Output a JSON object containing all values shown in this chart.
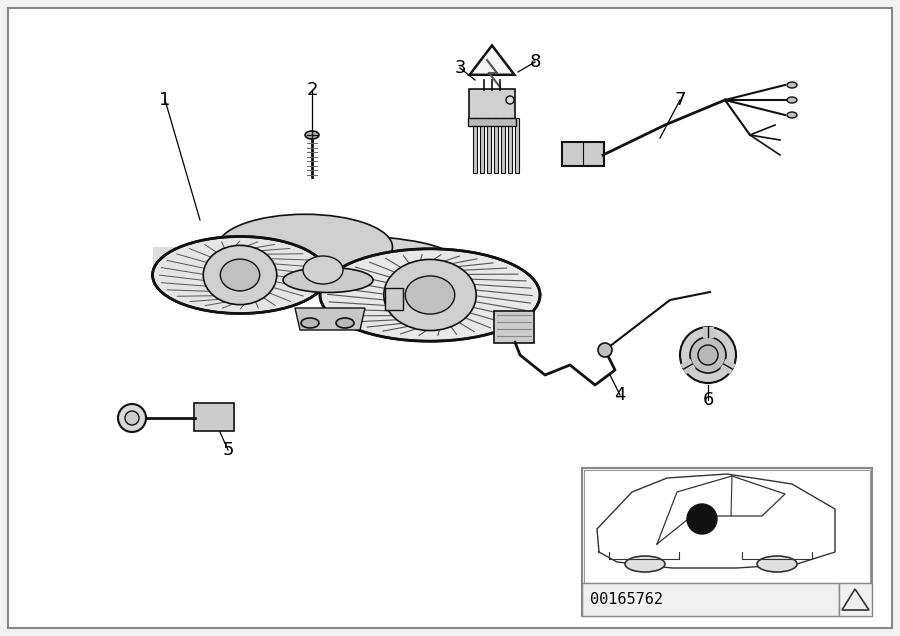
{
  "background_color": "#f2f2f2",
  "diagram_bg": "#ffffff",
  "border_color": "#000000",
  "diagram_id": "00165762",
  "label_color": "#000000",
  "line_color": "#111111",
  "part_line_color": "#222222"
}
